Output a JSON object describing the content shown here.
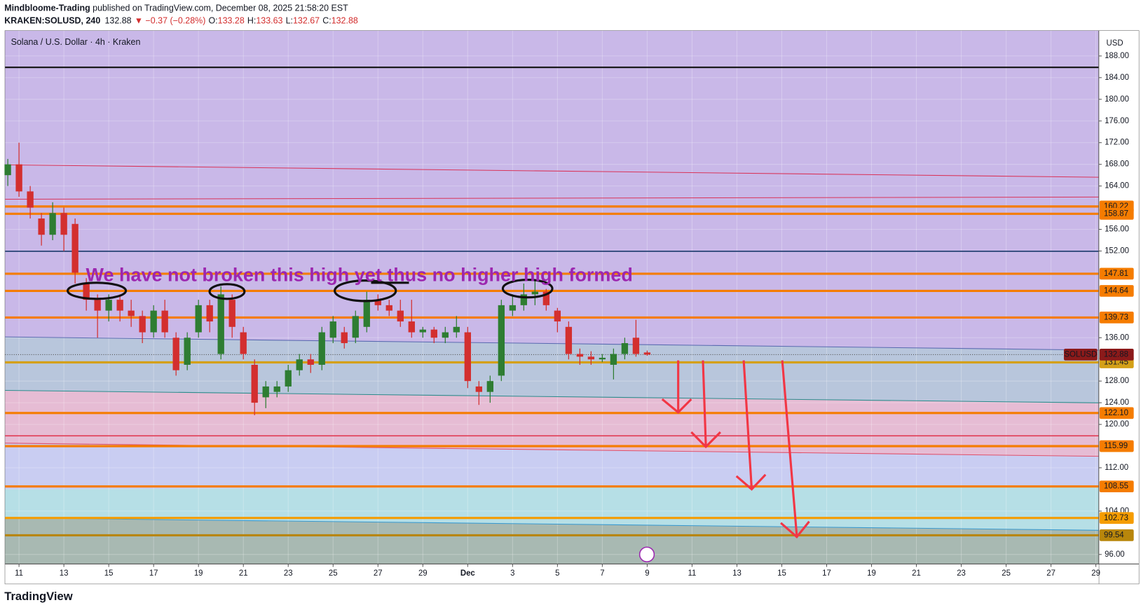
{
  "header": {
    "author": "Mindbloome-Trading",
    "published": " published on TradingView.com, December 08, 2025 21:58:20 EST",
    "symbol": "KRAKEN:SOLUSD, 240",
    "last": "132.88",
    "change": "▼ −0.37 (−0.28%)",
    "ohlc": [
      {
        "key": "O:",
        "value": "133.28"
      },
      {
        "key": "H:",
        "value": "133.63"
      },
      {
        "key": "L:",
        "value": "132.67"
      },
      {
        "key": "C:",
        "value": "132.88"
      }
    ]
  },
  "chart_data": {
    "type": "candlestick",
    "title": "Solana / U.S. Dollar · 4h · Kraken",
    "currency": "USD",
    "annotation": "We have not broken this high yet thus no higher high formed",
    "x": [
      -0.5,
      0,
      0.5,
      1,
      1.5,
      2,
      2.5,
      3,
      3.5,
      4,
      4.5,
      5,
      5.5,
      6,
      6.5,
      7,
      7.5,
      8,
      8.5,
      9,
      9.5,
      10,
      10.5,
      11,
      11.5,
      12,
      12.5,
      13,
      13.5,
      14,
      14.5,
      15,
      15.5,
      16,
      16.5,
      17,
      17.5,
      18,
      18.5,
      19,
      19.5,
      20,
      20.5,
      21,
      21.5,
      22,
      22.5,
      23,
      23.5,
      24,
      24.5,
      25,
      25.5,
      26,
      26.5,
      27,
      27.5,
      28
    ],
    "open": [
      166,
      168,
      163,
      158,
      155,
      159,
      157,
      146,
      143,
      141,
      143,
      141,
      140,
      137,
      141,
      136,
      131,
      137,
      142,
      133,
      143,
      137,
      131,
      125,
      126,
      127,
      130,
      132,
      131,
      136,
      137,
      136,
      138,
      143,
      142,
      141,
      139,
      137,
      137.5,
      136,
      137,
      137,
      127,
      126,
      129,
      141,
      142,
      144,
      144.5,
      141,
      138,
      133,
      132.5,
      132,
      131,
      133,
      136,
      133.28
    ],
    "close": [
      168,
      163,
      160,
      155,
      159,
      155,
      148,
      143,
      141,
      143,
      141,
      140,
      137,
      141,
      137,
      130,
      136,
      142,
      139,
      144,
      138,
      133,
      124,
      127,
      127,
      130,
      132,
      131,
      137,
      139,
      135,
      140,
      143,
      142,
      141,
      139,
      137,
      137.5,
      136,
      137,
      138,
      128,
      126,
      128,
      142,
      142,
      144,
      144.5,
      142,
      139,
      133,
      132.5,
      132,
      132.3,
      133,
      135,
      133,
      132.88
    ],
    "high": [
      169,
      172,
      164,
      159,
      161,
      160,
      158,
      147,
      144,
      144,
      144,
      143,
      141,
      142,
      143,
      137,
      137,
      143,
      143,
      145.5,
      144,
      138,
      132,
      128,
      128,
      131,
      133,
      133,
      138,
      140,
      138,
      141,
      144.5,
      144,
      143,
      143,
      143,
      138,
      138,
      138,
      140,
      138,
      128,
      129,
      143,
      144,
      146,
      146.5,
      145,
      141.5,
      139,
      134,
      133.5,
      133,
      134,
      136,
      139.3,
      133.63
    ],
    "low": [
      164,
      162,
      158,
      153,
      154,
      152,
      146,
      141,
      136,
      139,
      139,
      138,
      135,
      136,
      136,
      129,
      130,
      136,
      137,
      132,
      136,
      132,
      121.7,
      123,
      125,
      126,
      129,
      129.5,
      130,
      135,
      134,
      135,
      137,
      141,
      140,
      138,
      136,
      136,
      135,
      135,
      136,
      126.7,
      123.6,
      124,
      128,
      140,
      141,
      142,
      141,
      137,
      132,
      131,
      131,
      131.5,
      128.3,
      132,
      132.5,
      132.67
    ],
    "up_color": "#2e7d32",
    "down_color": "#d32f2f",
    "xlim": [
      -0.62,
      48.13
    ],
    "ylim": [
      94.24,
      192.65
    ],
    "grid": true,
    "xticks": [
      {
        "value": 0,
        "label": "11"
      },
      {
        "value": 2,
        "label": "13"
      },
      {
        "value": 4,
        "label": "15"
      },
      {
        "value": 6,
        "label": "17"
      },
      {
        "value": 8,
        "label": "19"
      },
      {
        "value": 10,
        "label": "21"
      },
      {
        "value": 12,
        "label": "23"
      },
      {
        "value": 14,
        "label": "25"
      },
      {
        "value": 16,
        "label": "27"
      },
      {
        "value": 18,
        "label": "29"
      },
      {
        "value": 20,
        "label": "Dec"
      },
      {
        "value": 22,
        "label": "3"
      },
      {
        "value": 24,
        "label": "5"
      },
      {
        "value": 26,
        "label": "7"
      },
      {
        "value": 28,
        "label": "9"
      },
      {
        "value": 30,
        "label": "11"
      },
      {
        "value": 32,
        "label": "13"
      },
      {
        "value": 34,
        "label": "15"
      },
      {
        "value": 36,
        "label": "17"
      },
      {
        "value": 38,
        "label": "19"
      },
      {
        "value": 40,
        "label": "21"
      },
      {
        "value": 42,
        "label": "23"
      },
      {
        "value": 44,
        "label": "25"
      },
      {
        "value": 46,
        "label": "27"
      },
      {
        "value": 48,
        "label": "29"
      }
    ],
    "yticks": [
      {
        "value": 96,
        "label": "96.00"
      },
      {
        "value": 104,
        "label": "104.00"
      },
      {
        "value": 112,
        "label": "112.00"
      },
      {
        "value": 120,
        "label": "120.00"
      },
      {
        "value": 124,
        "label": "124.00"
      },
      {
        "value": 128,
        "label": "128.00"
      },
      {
        "value": 136,
        "label": "136.00"
      },
      {
        "value": 152,
        "label": "152.00"
      },
      {
        "value": 156,
        "label": "156.00"
      },
      {
        "value": 164,
        "label": "164.00"
      },
      {
        "value": 168,
        "label": "168.00"
      },
      {
        "value": 172,
        "label": "172.00"
      },
      {
        "value": 176,
        "label": "176.00"
      },
      {
        "value": 180,
        "label": "180.00"
      },
      {
        "value": 184,
        "label": "184.00"
      },
      {
        "value": 188,
        "label": "188.00"
      }
    ],
    "levels": [
      {
        "value": 160.22,
        "color": "#f57c00"
      },
      {
        "value": 158.87,
        "color": "#f57c00"
      },
      {
        "value": 147.81,
        "color": "#f57c00"
      },
      {
        "value": 144.64,
        "color": "#f57c00"
      },
      {
        "value": 139.73,
        "color": "#f57c00"
      },
      {
        "value": 131.45,
        "color": "#d4a017"
      },
      {
        "value": 122.1,
        "label": "122.10",
        "color": "#f57c00"
      },
      {
        "value": 115.99,
        "color": "#f57c00"
      },
      {
        "value": 108.55,
        "color": "#f57c00"
      },
      {
        "value": 102.73,
        "color": "#f59c00"
      },
      {
        "value": 99.54,
        "color": "#b8860b"
      }
    ],
    "last_price": {
      "name": "SOLUSD",
      "value": 132.88,
      "color": "#8b1a1a"
    }
  },
  "footer": {
    "brand": "TradingView"
  }
}
